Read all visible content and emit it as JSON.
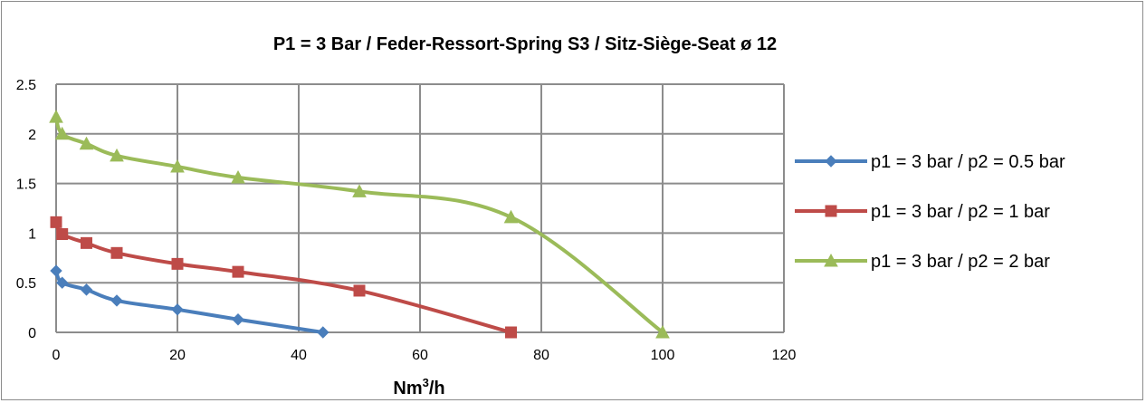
{
  "chart_data": {
    "type": "line",
    "title": "P1 = 3 Bar / Feder-Ressort-Spring S3 / Sitz-Siège-Seat   ø 12",
    "xlabel_main": "Nm",
    "xlabel_sup": "3",
    "xlabel_tail": "/h",
    "ylabel": "",
    "xlim": [
      0,
      120
    ],
    "ylim": [
      0,
      2.5
    ],
    "xticks": [
      "0",
      "20",
      "40",
      "60",
      "80",
      "100",
      "120"
    ],
    "yticks": [
      "0",
      "0.5",
      "1",
      "1.5",
      "2",
      "2.5"
    ],
    "grid": true,
    "legend_position": "right",
    "series": [
      {
        "name": "p1 = 3 bar / p2 = 0.5 bar",
        "color": "#4a7ebb",
        "marker": "diamond",
        "x": [
          0,
          1,
          5,
          10,
          20,
          30,
          44
        ],
        "y": [
          0.62,
          0.5,
          0.43,
          0.32,
          0.23,
          0.13,
          0.0
        ]
      },
      {
        "name": "p1 = 3 bar / p2 = 1 bar",
        "color": "#be4b48",
        "marker": "square",
        "x": [
          0,
          1,
          5,
          10,
          20,
          30,
          50,
          75
        ],
        "y": [
          1.11,
          0.99,
          0.9,
          0.8,
          0.69,
          0.61,
          0.42,
          0.0
        ]
      },
      {
        "name": "p1 = 3 bar / p2 = 2 bar",
        "color": "#9bbb59",
        "marker": "triangle",
        "x": [
          0,
          1,
          5,
          10,
          20,
          30,
          50,
          75,
          100
        ],
        "y": [
          2.17,
          2.0,
          1.9,
          1.78,
          1.67,
          1.56,
          1.42,
          1.16,
          0.0
        ]
      }
    ]
  }
}
